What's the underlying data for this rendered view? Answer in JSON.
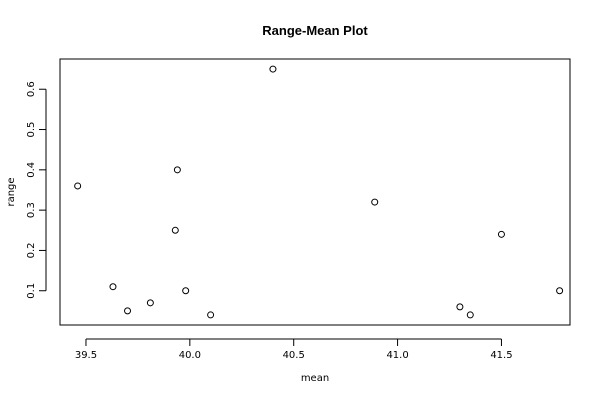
{
  "chart_data": {
    "type": "scatter",
    "title": "Range-Mean Plot",
    "xlabel": "mean",
    "ylabel": "range",
    "xlim": [
      39.375,
      41.83
    ],
    "ylim": [
      0.015,
      0.675
    ],
    "x_ticks": [
      39.5,
      40.0,
      40.5,
      41.0,
      41.5
    ],
    "x_tick_labels": [
      "39.5",
      "40.0",
      "40.5",
      "41.0",
      "41.5"
    ],
    "y_ticks": [
      0.1,
      0.2,
      0.3,
      0.4,
      0.5,
      0.6
    ],
    "y_tick_labels": [
      "0.1",
      "0.2",
      "0.3",
      "0.4",
      "0.5",
      "0.6"
    ],
    "grid": false,
    "points": [
      {
        "x": 39.46,
        "y": 0.36
      },
      {
        "x": 39.63,
        "y": 0.11
      },
      {
        "x": 39.7,
        "y": 0.05
      },
      {
        "x": 39.81,
        "y": 0.07
      },
      {
        "x": 39.93,
        "y": 0.25
      },
      {
        "x": 39.94,
        "y": 0.4
      },
      {
        "x": 39.98,
        "y": 0.1
      },
      {
        "x": 40.1,
        "y": 0.04
      },
      {
        "x": 40.4,
        "y": 0.65
      },
      {
        "x": 40.89,
        "y": 0.32
      },
      {
        "x": 41.3,
        "y": 0.06
      },
      {
        "x": 41.35,
        "y": 0.04
      },
      {
        "x": 41.5,
        "y": 0.24
      },
      {
        "x": 41.78,
        "y": 0.1
      }
    ]
  }
}
